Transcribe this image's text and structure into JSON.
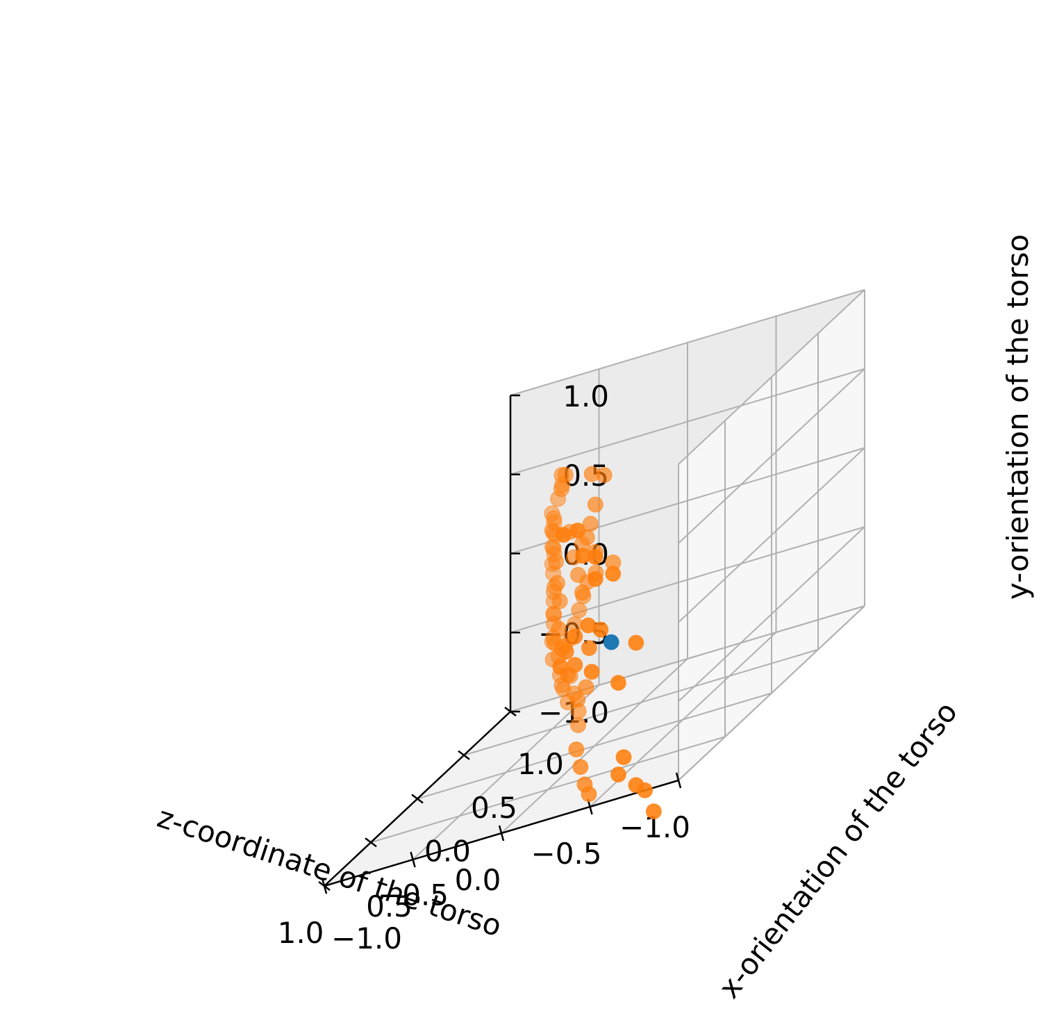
{
  "chart_data": {
    "type": "scatter",
    "projection": "3d",
    "grid": true,
    "xlabel": "z-coordinate of the torso",
    "ylabel": "x-orientation of the torso",
    "zlabel": "y-orientation of the torso",
    "xlim": [
      -1.0,
      1.0
    ],
    "ylim": [
      -1.0,
      1.0
    ],
    "zlim": [
      -1.0,
      1.0
    ],
    "xticks": [
      "−1.0",
      "−0.5",
      "0.0",
      "0.5",
      "1.0"
    ],
    "yticks": [
      "−1.0",
      "−0.5",
      "0.0",
      "0.5",
      "1.0"
    ],
    "zticks": [
      "−1.0",
      "−0.5",
      "0.0",
      "0.5",
      "1.0"
    ],
    "colors": {
      "series_orange": "#ff7f0e",
      "series_blue": "#1f77b4"
    },
    "series": [
      {
        "color": "#ff7f0e",
        "points": [
          [
            -0.22,
            -0.6,
            0.62
          ],
          [
            -0.14,
            -0.6,
            0.62
          ],
          [
            -0.32,
            -0.6,
            0.42
          ],
          [
            -0.25,
            -0.6,
            0.45
          ],
          [
            -0.42,
            -0.6,
            0.28
          ],
          [
            -0.32,
            -0.6,
            0.28
          ],
          [
            -0.28,
            -0.6,
            0.0
          ],
          [
            -0.35,
            -0.6,
            -0.05
          ],
          [
            -0.55,
            -0.6,
            -0.2
          ],
          [
            -0.45,
            -0.6,
            -0.42
          ],
          [
            -0.3,
            -0.6,
            -0.3
          ],
          [
            -0.48,
            -0.6,
            -0.9
          ],
          [
            -0.45,
            -0.6,
            -1.0
          ],
          [
            -0.6,
            -0.6,
            -1.15
          ],
          [
            -0.55,
            -0.6,
            -1.1
          ],
          [
            -0.65,
            -0.6,
            -1.3
          ],
          [
            -0.18,
            -0.4,
            -0.22
          ],
          [
            -0.1,
            -0.4,
            -0.12
          ],
          [
            -0.05,
            -0.4,
            -0.2
          ],
          [
            -0.1,
            -0.4,
            -0.3
          ],
          [
            0.05,
            0.2,
            0.62
          ],
          [
            0.12,
            0.2,
            0.65
          ],
          [
            0.1,
            0.2,
            0.45
          ],
          [
            0.18,
            0.3,
            0.3
          ],
          [
            0.2,
            0.3,
            0.22
          ],
          [
            0.28,
            0.4,
            0.15
          ],
          [
            0.1,
            0.2,
            0.15
          ],
          [
            0.0,
            0.2,
            0.05
          ],
          [
            0.15,
            0.3,
            -0.02
          ],
          [
            0.25,
            0.4,
            -0.1
          ],
          [
            0.3,
            0.45,
            -0.2
          ],
          [
            0.35,
            0.5,
            -0.3
          ],
          [
            0.4,
            0.55,
            -0.4
          ],
          [
            0.45,
            0.6,
            -0.5
          ],
          [
            0.5,
            0.6,
            -0.55
          ],
          [
            0.55,
            0.6,
            -0.6
          ],
          [
            0.4,
            0.5,
            -0.7
          ],
          [
            0.35,
            0.45,
            -0.8
          ],
          [
            0.3,
            0.4,
            -0.9
          ],
          [
            0.25,
            0.3,
            -0.95
          ],
          [
            0.1,
            0.1,
            -0.65
          ],
          [
            0.2,
            0.2,
            -0.75
          ],
          [
            0.35,
            0.3,
            -0.55
          ],
          [
            0.5,
            0.5,
            -0.45
          ],
          [
            0.6,
            0.7,
            -0.35
          ],
          [
            0.65,
            0.8,
            -0.25
          ],
          [
            0.68,
            0.85,
            -0.15
          ],
          [
            0.7,
            0.9,
            -0.05
          ],
          [
            0.72,
            0.95,
            0.05
          ],
          [
            0.7,
            0.9,
            0.15
          ],
          [
            0.66,
            0.8,
            0.25
          ],
          [
            0.6,
            0.75,
            0.35
          ],
          [
            0.55,
            0.7,
            0.45
          ],
          [
            0.5,
            0.6,
            0.55
          ],
          [
            0.45,
            0.5,
            0.5
          ],
          [
            0.4,
            0.45,
            0.6
          ],
          [
            0.35,
            0.4,
            0.25
          ],
          [
            0.3,
            0.35,
            0.1
          ],
          [
            0.25,
            0.3,
            0.0
          ],
          [
            0.2,
            0.25,
            -0.1
          ],
          [
            0.62,
            0.75,
            -0.2
          ],
          [
            0.64,
            0.78,
            -0.3
          ],
          [
            0.66,
            0.82,
            -0.4
          ],
          [
            0.6,
            0.7,
            -0.5
          ],
          [
            0.56,
            0.68,
            -0.62
          ],
          [
            0.52,
            0.62,
            -0.72
          ],
          [
            0.48,
            0.58,
            -0.8
          ],
          [
            0.44,
            0.55,
            -0.88
          ],
          [
            0.05,
            -0.1,
            -0.95
          ],
          [
            0.0,
            -0.15,
            -1.05
          ],
          [
            -0.05,
            -0.2,
            -1.15
          ],
          [
            -0.1,
            -0.25,
            -1.2
          ],
          [
            0.15,
            0.0,
            -0.5
          ],
          [
            0.22,
            0.1,
            -0.35
          ],
          [
            0.28,
            0.15,
            -0.25
          ],
          [
            0.38,
            0.35,
            -0.15
          ],
          [
            0.42,
            0.4,
            -0.05
          ],
          [
            0.48,
            0.5,
            0.05
          ],
          [
            0.52,
            0.55,
            0.12
          ],
          [
            0.58,
            0.65,
            0.2
          ],
          [
            0.7,
            0.88,
            -0.1
          ],
          [
            0.71,
            0.9,
            0.0
          ],
          [
            0.69,
            0.87,
            0.1
          ],
          [
            0.67,
            0.84,
            0.2
          ],
          [
            0.65,
            0.8,
            -0.45
          ],
          [
            0.6,
            0.72,
            -0.55
          ],
          [
            0.54,
            0.66,
            -0.68
          ],
          [
            0.5,
            0.6,
            -0.78
          ]
        ]
      },
      {
        "color": "#1f77b4",
        "points": [
          [
            -0.2,
            -0.2,
            -0.3
          ]
        ]
      }
    ]
  }
}
